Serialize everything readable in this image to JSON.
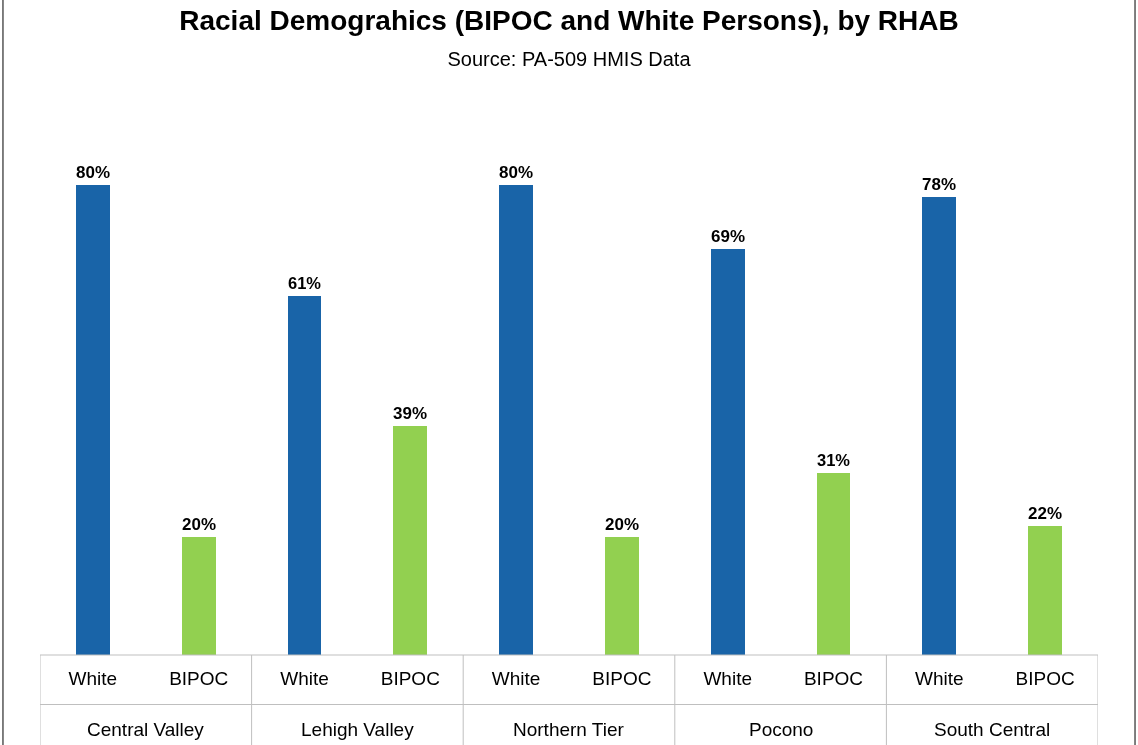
{
  "chart_data": {
    "type": "bar",
    "title": "Racial Demograhics (BIPOC and White Persons), by RHAB",
    "subtitle": "Source: PA-509 HMIS Data",
    "categories": [
      "Central Valley",
      "Lehigh Valley",
      "Northern Tier",
      "Pocono",
      "South Central"
    ],
    "series": [
      {
        "name": "White",
        "color": "#1964a8",
        "values": [
          80,
          61,
          80,
          69,
          78
        ],
        "value_labels": [
          "80%",
          "61%",
          "80%",
          "69%",
          "78%"
        ]
      },
      {
        "name": "BIPOC",
        "color": "#92d050",
        "values": [
          20,
          39,
          20,
          31,
          22
        ],
        "value_labels": [
          "20%",
          "39%",
          "20%",
          "31%",
          "22%"
        ]
      }
    ],
    "legend": false
  }
}
